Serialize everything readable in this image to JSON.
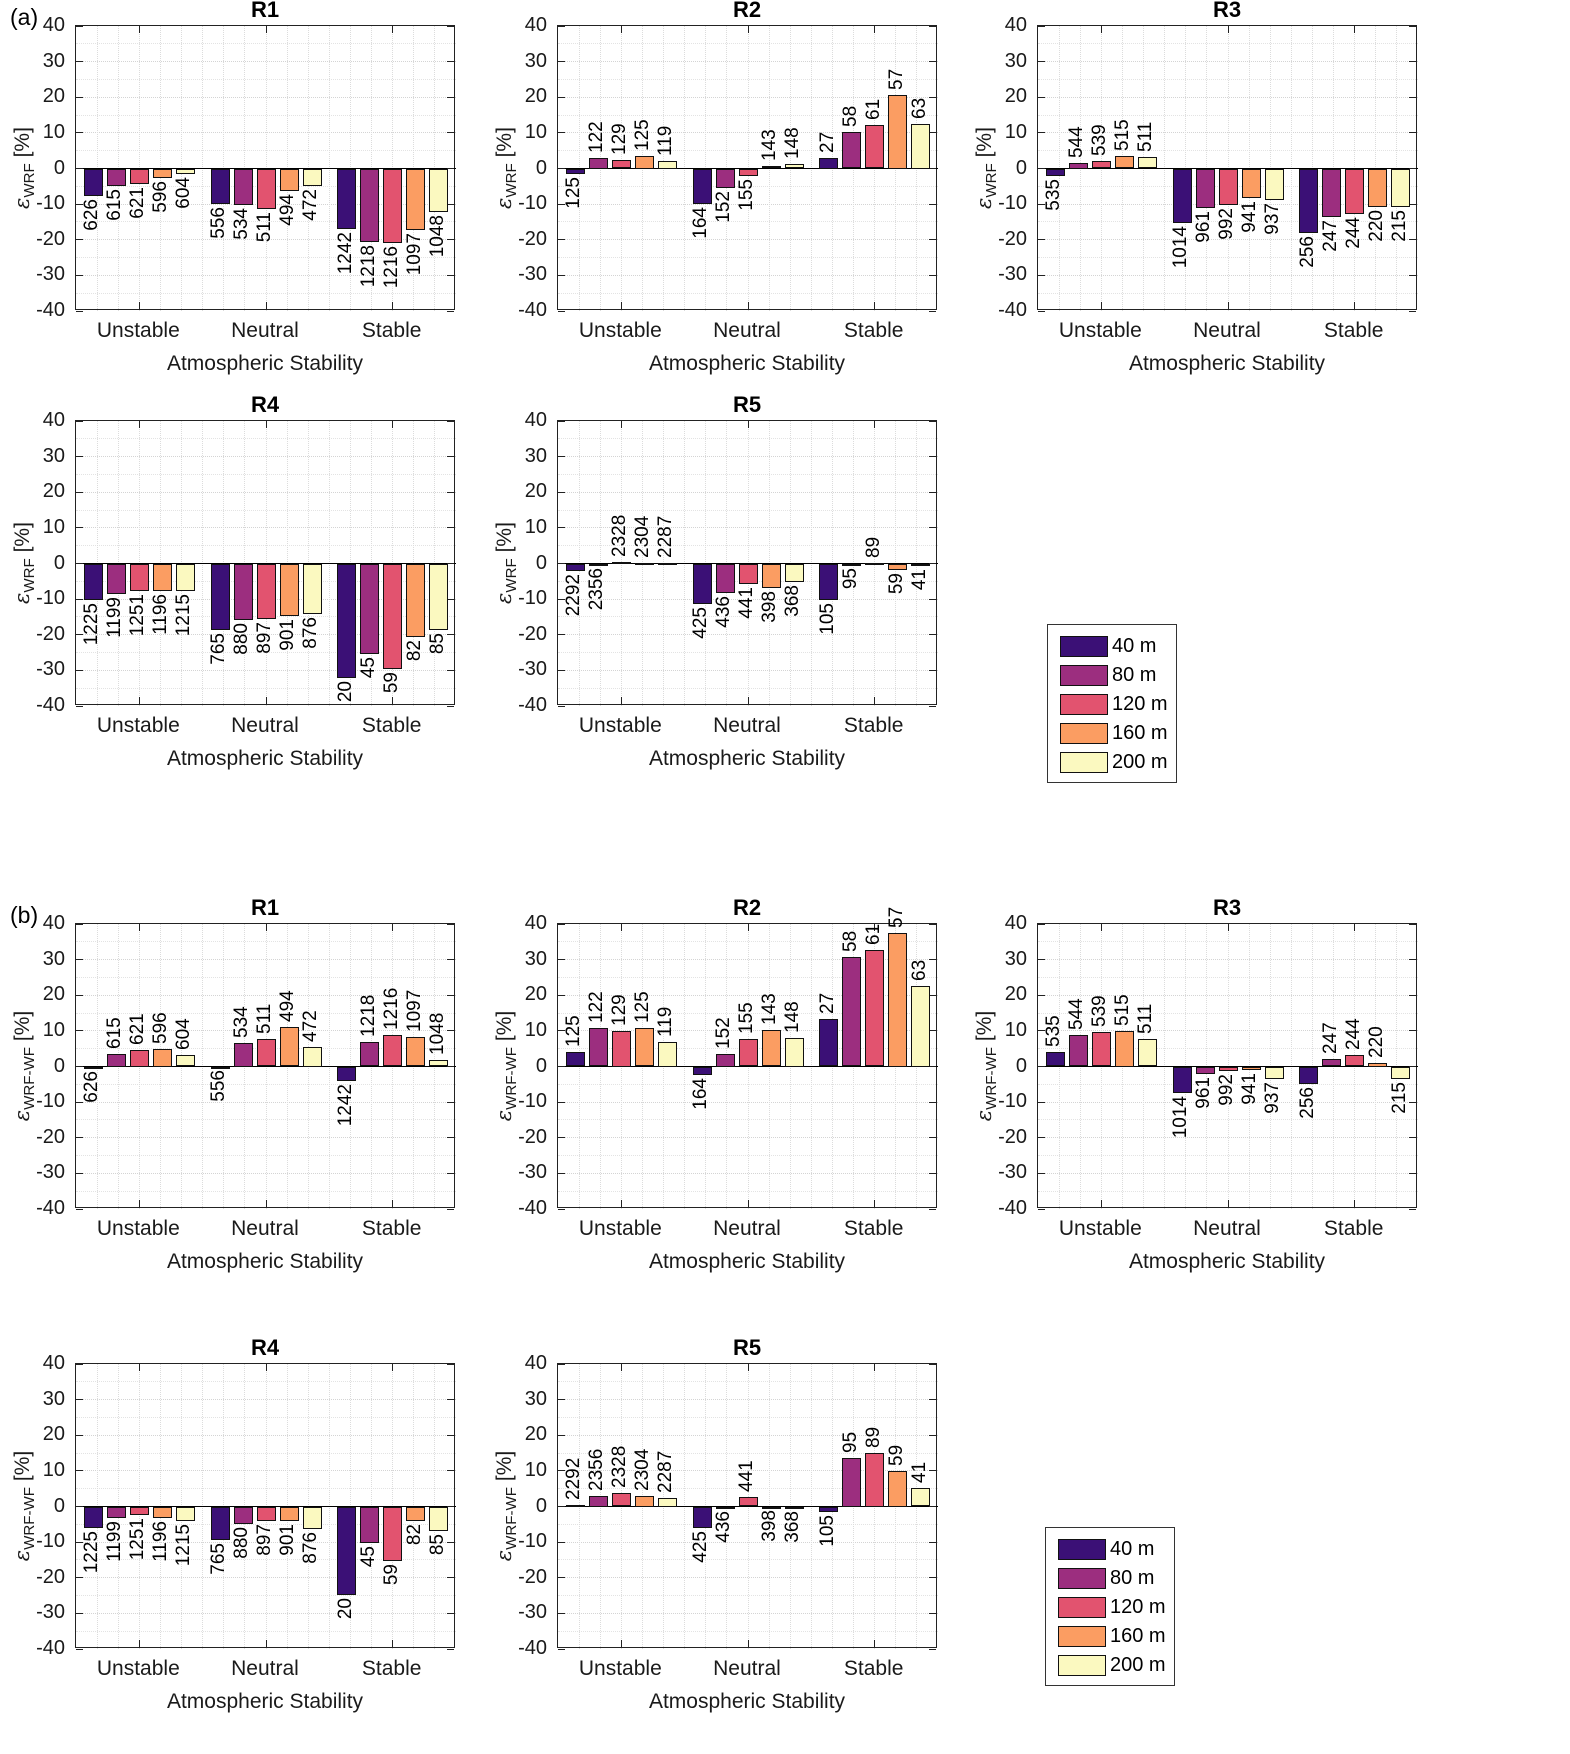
{
  "figure": {
    "panel_a_label": "(a)",
    "panel_b_label": "(b)",
    "xlabel": "Atmospheric Stability",
    "categories": [
      "Unstable",
      "Neutral",
      "Stable"
    ],
    "legend": {
      "position": "right of R5, panels a and b",
      "items": [
        {
          "label": "40 m",
          "color": "#3b1076"
        },
        {
          "label": "80 m",
          "color": "#9c2e7f"
        },
        {
          "label": "120 m",
          "color": "#e2536f"
        },
        {
          "label": "160 m",
          "color": "#fb9d62"
        },
        {
          "label": "200 m",
          "color": "#fbf9c0"
        }
      ]
    },
    "y_axis": {
      "ylim": [
        -40,
        40
      ],
      "tick_step": 10,
      "minor_step": 5,
      "grid": "dotted",
      "unit": "[%]",
      "epsilon": "ε"
    }
  },
  "chart_data": [
    {
      "type": "bar",
      "panel": "a",
      "title": "R1",
      "ylabel_sub": "WRF",
      "ylabel_unit": "[%]",
      "xlabel": "Atmospheric Stability",
      "ylim": [
        -40,
        40
      ],
      "series_names": [
        "40 m",
        "80 m",
        "120 m",
        "160 m",
        "200 m"
      ],
      "groups": [
        {
          "category": "Unstable",
          "values": [
            -7.8,
            -5.0,
            -4.3,
            -2.7,
            -1.5
          ],
          "counts": [
            626,
            615,
            621,
            596,
            604
          ]
        },
        {
          "category": "Neutral",
          "values": [
            -10.0,
            -10.2,
            -11.5,
            -6.3,
            -5.0
          ],
          "counts": [
            556,
            534,
            511,
            494,
            472
          ]
        },
        {
          "category": "Stable",
          "values": [
            -17.0,
            -20.5,
            -21.0,
            -17.3,
            -12.2
          ],
          "counts": [
            1242,
            1218,
            1216,
            1097,
            1048
          ]
        }
      ]
    },
    {
      "type": "bar",
      "panel": "a",
      "title": "R2",
      "ylabel_sub": "WRF",
      "ylabel_unit": "[%]",
      "xlabel": "Atmospheric Stability",
      "ylim": [
        -40,
        40
      ],
      "series_names": [
        "40 m",
        "80 m",
        "120 m",
        "160 m",
        "200 m"
      ],
      "groups": [
        {
          "category": "Unstable",
          "values": [
            -1.5,
            3.0,
            2.3,
            3.5,
            2.0
          ],
          "counts": [
            125,
            122,
            129,
            125,
            119
          ]
        },
        {
          "category": "Neutral",
          "values": [
            -10.0,
            -5.5,
            -2.0,
            0.8,
            1.3
          ],
          "counts": [
            164,
            152,
            155,
            143,
            148
          ]
        },
        {
          "category": "Stable",
          "values": [
            3.0,
            10.2,
            12.2,
            20.5,
            12.5
          ],
          "counts": [
            27,
            58,
            61,
            57,
            63
          ]
        }
      ]
    },
    {
      "type": "bar",
      "panel": "a",
      "title": "R3",
      "ylabel_sub": "WRF",
      "ylabel_unit": "[%]",
      "xlabel": "Atmospheric Stability",
      "ylim": [
        -40,
        40
      ],
      "series_names": [
        "40 m",
        "80 m",
        "120 m",
        "160 m",
        "200 m"
      ],
      "groups": [
        {
          "category": "Unstable",
          "values": [
            -2.2,
            1.5,
            2.2,
            3.6,
            3.1
          ],
          "counts": [
            535,
            544,
            539,
            515,
            511
          ]
        },
        {
          "category": "Neutral",
          "values": [
            -15.3,
            -11.0,
            -10.3,
            -8.4,
            -8.8
          ],
          "counts": [
            1014,
            961,
            992,
            941,
            937
          ]
        },
        {
          "category": "Stable",
          "values": [
            -18.0,
            -13.7,
            -12.7,
            -10.8,
            -10.7
          ],
          "counts": [
            256,
            247,
            244,
            220,
            215
          ]
        }
      ]
    },
    {
      "type": "bar",
      "panel": "a",
      "title": "R4",
      "ylabel_sub": "WRF",
      "ylabel_unit": "[%]",
      "xlabel": "Atmospheric Stability",
      "ylim": [
        -40,
        40
      ],
      "series_names": [
        "40 m",
        "80 m",
        "120 m",
        "160 m",
        "200 m"
      ],
      "groups": [
        {
          "category": "Unstable",
          "values": [
            -10.3,
            -8.5,
            -7.8,
            -7.8,
            -7.7
          ],
          "counts": [
            1225,
            1199,
            1251,
            1196,
            1215
          ]
        },
        {
          "category": "Neutral",
          "values": [
            -18.7,
            -15.8,
            -15.7,
            -14.7,
            -14.3
          ],
          "counts": [
            765,
            880,
            897,
            901,
            876
          ]
        },
        {
          "category": "Stable",
          "values": [
            -32.0,
            -25.3,
            -29.7,
            -20.5,
            -18.7
          ],
          "counts": [
            20,
            45,
            59,
            82,
            85
          ]
        }
      ]
    },
    {
      "type": "bar",
      "panel": "a",
      "title": "R5",
      "ylabel_sub": "WRF",
      "ylabel_unit": "[%]",
      "xlabel": "Atmospheric Stability",
      "ylim": [
        -40,
        40
      ],
      "series_names": [
        "40 m",
        "80 m",
        "120 m",
        "160 m",
        "200 m"
      ],
      "groups": [
        {
          "category": "Unstable",
          "values": [
            -2.2,
            -0.3,
            0.4,
            0.1,
            0.2
          ],
          "counts": [
            2292,
            2356,
            2328,
            2304,
            2287
          ]
        },
        {
          "category": "Neutral",
          "values": [
            -11.5,
            -8.2,
            -5.8,
            -7.0,
            -5.2
          ],
          "counts": [
            425,
            436,
            441,
            398,
            368
          ]
        },
        {
          "category": "Stable",
          "values": [
            -10.3,
            -0.5,
            0.15,
            -1.8,
            -0.7
          ],
          "counts": [
            105,
            95,
            89,
            59,
            41
          ]
        }
      ]
    },
    {
      "type": "bar",
      "panel": "b",
      "title": "R1",
      "ylabel_sub": "WRF-WF",
      "ylabel_unit": "[%]",
      "xlabel": "Atmospheric Stability",
      "ylim": [
        -40,
        40
      ],
      "series_names": [
        "40 m",
        "80 m",
        "120 m",
        "160 m",
        "200 m"
      ],
      "groups": [
        {
          "category": "Unstable",
          "values": [
            -0.3,
            3.5,
            4.5,
            5.0,
            3.2
          ],
          "counts": [
            626,
            615,
            621,
            596,
            604
          ]
        },
        {
          "category": "Neutral",
          "values": [
            -0.15,
            6.5,
            7.8,
            11.2,
            5.5
          ],
          "counts": [
            556,
            534,
            511,
            494,
            472
          ]
        },
        {
          "category": "Stable",
          "values": [
            -4.0,
            6.8,
            8.8,
            8.2,
            1.8
          ],
          "counts": [
            1242,
            1218,
            1216,
            1097,
            1048
          ]
        }
      ]
    },
    {
      "type": "bar",
      "panel": "b",
      "title": "R2",
      "ylabel_sub": "WRF-WF",
      "ylabel_unit": "[%]",
      "xlabel": "Atmospheric Stability",
      "ylim": [
        -40,
        40
      ],
      "series_names": [
        "40 m",
        "80 m",
        "120 m",
        "160 m",
        "200 m"
      ],
      "groups": [
        {
          "category": "Unstable",
          "values": [
            4.2,
            10.8,
            10.0,
            10.8,
            7.0
          ],
          "counts": [
            125,
            122,
            129,
            125,
            119
          ]
        },
        {
          "category": "Neutral",
          "values": [
            -2.5,
            3.5,
            7.8,
            10.2,
            8.0
          ],
          "counts": [
            164,
            152,
            155,
            143,
            148
          ]
        },
        {
          "category": "Stable",
          "values": [
            13.3,
            30.8,
            32.8,
            37.5,
            22.5
          ],
          "counts": [
            27,
            58,
            61,
            57,
            63
          ]
        }
      ]
    },
    {
      "type": "bar",
      "panel": "b",
      "title": "R3",
      "ylabel_sub": "WRF-WF",
      "ylabel_unit": "[%]",
      "xlabel": "Atmospheric Stability",
      "ylim": [
        -40,
        40
      ],
      "series_names": [
        "40 m",
        "80 m",
        "120 m",
        "160 m",
        "200 m"
      ],
      "groups": [
        {
          "category": "Unstable",
          "values": [
            4.2,
            8.8,
            9.8,
            10.0,
            7.8
          ],
          "counts": [
            535,
            544,
            539,
            515,
            511
          ]
        },
        {
          "category": "Neutral",
          "values": [
            -7.5,
            -2.2,
            -1.2,
            -1.0,
            -3.5
          ],
          "counts": [
            1014,
            961,
            992,
            941,
            937
          ]
        },
        {
          "category": "Stable",
          "values": [
            -4.8,
            2.2,
            3.2,
            1.0,
            -3.5
          ],
          "counts": [
            256,
            247,
            244,
            220,
            215
          ]
        }
      ]
    },
    {
      "type": "bar",
      "panel": "b",
      "title": "R4",
      "ylabel_sub": "WRF-WF",
      "ylabel_unit": "[%]",
      "xlabel": "Atmospheric Stability",
      "ylim": [
        -40,
        40
      ],
      "series_names": [
        "40 m",
        "80 m",
        "120 m",
        "160 m",
        "200 m"
      ],
      "groups": [
        {
          "category": "Unstable",
          "values": [
            -6.0,
            -3.3,
            -2.5,
            -3.2,
            -4.2
          ],
          "counts": [
            1225,
            1199,
            1251,
            1196,
            1215
          ]
        },
        {
          "category": "Neutral",
          "values": [
            -9.5,
            -5.0,
            -4.0,
            -4.2,
            -6.2
          ],
          "counts": [
            765,
            880,
            897,
            901,
            876
          ]
        },
        {
          "category": "Stable",
          "values": [
            -24.8,
            -10.3,
            -15.2,
            -4.0,
            -7.0
          ],
          "counts": [
            20,
            45,
            59,
            82,
            85
          ]
        }
      ]
    },
    {
      "type": "bar",
      "panel": "b",
      "title": "R5",
      "ylabel_sub": "WRF-WF",
      "ylabel_unit": "[%]",
      "xlabel": "Atmospheric Stability",
      "ylim": [
        -40,
        40
      ],
      "series_names": [
        "40 m",
        "80 m",
        "120 m",
        "160 m",
        "200 m"
      ],
      "groups": [
        {
          "category": "Unstable",
          "values": [
            0.5,
            3.0,
            3.7,
            3.0,
            2.5
          ],
          "counts": [
            2292,
            2356,
            2328,
            2304,
            2287
          ]
        },
        {
          "category": "Neutral",
          "values": [
            -6.0,
            -0.3,
            2.8,
            -0.2,
            -0.5
          ],
          "counts": [
            425,
            436,
            441,
            398,
            368
          ]
        },
        {
          "category": "Stable",
          "values": [
            -1.5,
            13.5,
            15.0,
            10.0,
            5.3
          ],
          "counts": [
            105,
            95,
            89,
            59,
            41
          ]
        }
      ]
    }
  ]
}
